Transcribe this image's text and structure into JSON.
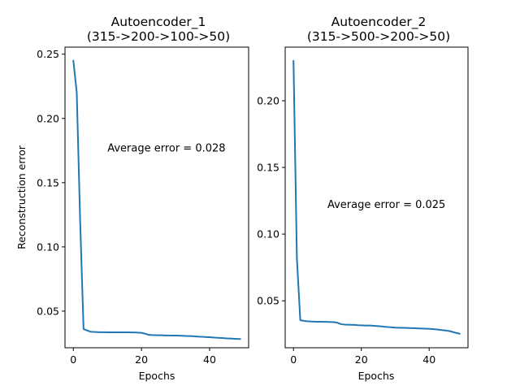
{
  "colors": {
    "series": "#1f77b4",
    "axes": "#000000",
    "background": "#ffffff"
  },
  "chart_data": [
    {
      "type": "line",
      "title": [
        "Autoencoder_1",
        "(315->200->100->50)"
      ],
      "xlabel": "Epochs",
      "ylabel": "Reconstruction error",
      "xlim": [
        -2.45,
        51.45
      ],
      "ylim": [
        0.0215,
        0.2555
      ],
      "xticks": [
        0,
        20,
        40
      ],
      "xtick_labels": [
        "0",
        "20",
        "40"
      ],
      "yticks": [
        0.05,
        0.1,
        0.15,
        0.2,
        0.25
      ],
      "ytick_labels": [
        "0.05",
        "0.10",
        "0.15",
        "0.20",
        "0.25"
      ],
      "grid": false,
      "annotation": {
        "text": "Average error = 0.028",
        "x": 10,
        "y": 0.1775
      },
      "series": [
        {
          "x": [
            0,
            1,
            2,
            3,
            4,
            5,
            6,
            7,
            8,
            9,
            10,
            11,
            12,
            13,
            14,
            15,
            16,
            17,
            18,
            19,
            20,
            21,
            22,
            23,
            24,
            25,
            26,
            27,
            28,
            29,
            30,
            31,
            32,
            33,
            34,
            35,
            36,
            37,
            38,
            39,
            40,
            41,
            42,
            43,
            44,
            45,
            46,
            47,
            48,
            49
          ],
          "values": [
            0.245,
            0.22,
            0.12,
            0.036,
            0.035,
            0.034,
            0.0338,
            0.0337,
            0.0336,
            0.0336,
            0.0335,
            0.0335,
            0.0335,
            0.0335,
            0.0335,
            0.0335,
            0.0335,
            0.0334,
            0.0334,
            0.0333,
            0.0331,
            0.0325,
            0.0316,
            0.0314,
            0.0313,
            0.0312,
            0.0312,
            0.0311,
            0.0311,
            0.031,
            0.031,
            0.0309,
            0.0308,
            0.0307,
            0.0306,
            0.0305,
            0.0303,
            0.0301,
            0.03,
            0.0298,
            0.0297,
            0.0295,
            0.0293,
            0.0292,
            0.029,
            0.0288,
            0.0287,
            0.0285,
            0.0284,
            0.0283
          ]
        }
      ]
    },
    {
      "type": "line",
      "title": [
        "Autoencoder_2",
        "(315->500->200->50)"
      ],
      "xlabel": "Epochs",
      "ylabel": "",
      "xlim": [
        -2.45,
        51.45
      ],
      "ylim": [
        0.0148,
        0.2402
      ],
      "xticks": [
        0,
        20,
        40
      ],
      "xtick_labels": [
        "0",
        "20",
        "40"
      ],
      "yticks": [
        0.05,
        0.1,
        0.15,
        0.2
      ],
      "ytick_labels": [
        "0.05",
        "0.10",
        "0.15",
        "0.20"
      ],
      "grid": false,
      "annotation": {
        "text": "Average error = 0.025",
        "x": 10,
        "y": 0.1225
      },
      "series": [
        {
          "x": [
            0,
            1,
            2,
            3,
            4,
            5,
            6,
            7,
            8,
            9,
            10,
            11,
            12,
            13,
            14,
            15,
            16,
            17,
            18,
            19,
            20,
            21,
            22,
            23,
            24,
            25,
            26,
            27,
            28,
            29,
            30,
            31,
            32,
            33,
            34,
            35,
            36,
            37,
            38,
            39,
            40,
            41,
            42,
            43,
            44,
            45,
            46,
            47,
            48,
            49
          ],
          "values": [
            0.23,
            0.082,
            0.0355,
            0.035,
            0.0347,
            0.0345,
            0.0344,
            0.0343,
            0.0343,
            0.0342,
            0.0342,
            0.0341,
            0.034,
            0.0335,
            0.0325,
            0.0322,
            0.0321,
            0.032,
            0.0319,
            0.0317,
            0.0316,
            0.0315,
            0.0315,
            0.0314,
            0.0312,
            0.031,
            0.0308,
            0.0305,
            0.0303,
            0.0301,
            0.0299,
            0.0298,
            0.0297,
            0.0297,
            0.0296,
            0.0295,
            0.0294,
            0.0293,
            0.0292,
            0.0291,
            0.029,
            0.0288,
            0.0286,
            0.0283,
            0.028,
            0.0277,
            0.0273,
            0.0266,
            0.0259,
            0.0253
          ]
        }
      ]
    }
  ]
}
